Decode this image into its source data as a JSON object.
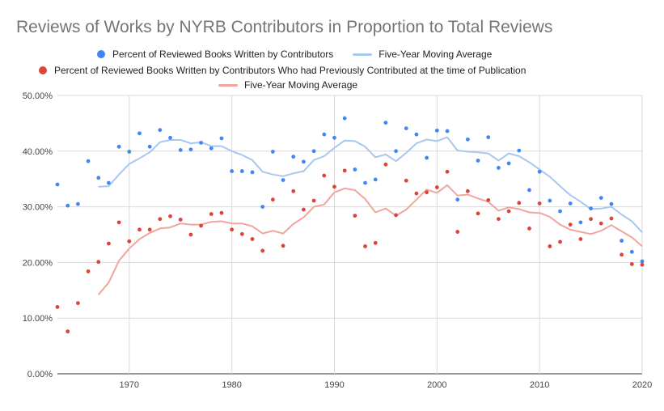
{
  "title": "Reviews of Works by NYRB Contributors in Proportion to Total Reviews",
  "legend": {
    "s1": "Percent of Reviewed Books Written by Contributors",
    "s1_avg": "Five-Year Moving Average",
    "s2": "Percent of Reviewed Books Written by Contributors Who had Previously Contributed at the time of Publication",
    "s2_avg": "Five-Year Moving Average"
  },
  "colors": {
    "blue": "#4285f4",
    "blue_avg": "#a8c7f0",
    "red": "#db4437",
    "red_avg": "#f0a59d",
    "grid": "#d9d9d9",
    "axis_text": "#444444",
    "title": "#757575"
  },
  "chart_data": {
    "type": "scatter",
    "title": "Reviews of Works by NYRB Contributors in Proportion to Total Reviews",
    "xlabel": "",
    "ylabel": "",
    "xlim": [
      1963,
      2020
    ],
    "ylim": [
      0,
      50
    ],
    "x_ticks": [
      "1970",
      "1980",
      "1990",
      "2000",
      "2010",
      "2020"
    ],
    "x_tick_values": [
      1970,
      1980,
      1990,
      2000,
      2010,
      2020
    ],
    "y_ticks": [
      "0.00%",
      "10.00%",
      "20.00%",
      "30.00%",
      "40.00%",
      "50.00%"
    ],
    "y_tick_values": [
      0,
      10,
      20,
      30,
      40,
      50
    ],
    "grid": true,
    "legend_position": "top",
    "series": [
      {
        "name": "Percent of Reviewed Books Written by Contributors",
        "kind": "points",
        "x": [
          1963,
          1964,
          1965,
          1966,
          1967,
          1968,
          1969,
          1970,
          1971,
          1972,
          1973,
          1974,
          1975,
          1976,
          1977,
          1978,
          1979,
          1980,
          1981,
          1982,
          1983,
          1984,
          1985,
          1986,
          1987,
          1988,
          1989,
          1990,
          1991,
          1992,
          1993,
          1994,
          1995,
          1996,
          1997,
          1998,
          1999,
          2000,
          2001,
          2002,
          2003,
          2004,
          2005,
          2006,
          2007,
          2008,
          2009,
          2010,
          2011,
          2012,
          2013,
          2014,
          2015,
          2016,
          2017,
          2018,
          2019,
          2020
        ],
        "y": [
          34.0,
          30.2,
          30.5,
          38.2,
          35.2,
          34.3,
          40.8,
          39.9,
          43.2,
          40.8,
          43.8,
          42.4,
          40.2,
          40.3,
          41.5,
          40.5,
          42.3,
          36.4,
          36.4,
          36.2,
          30.0,
          39.9,
          34.8,
          39.0,
          38.1,
          40.0,
          43.0,
          42.4,
          45.9,
          36.7,
          34.3,
          34.9,
          45.1,
          40.0,
          44.1,
          43.0,
          38.8,
          43.7,
          43.6,
          31.3,
          42.1,
          38.3,
          42.5,
          37.0,
          37.8,
          40.1,
          33.0,
          36.3,
          31.1,
          29.2,
          30.6,
          27.2,
          29.7,
          31.6,
          30.5,
          23.9,
          21.9,
          20.2
        ]
      },
      {
        "name": "Five-Year Moving Average",
        "kind": "line",
        "x": [
          1967,
          1968,
          1969,
          1970,
          1971,
          1972,
          1973,
          1974,
          1975,
          1976,
          1977,
          1978,
          1979,
          1980,
          1981,
          1982,
          1983,
          1984,
          1985,
          1986,
          1987,
          1988,
          1989,
          1990,
          1991,
          1992,
          1993,
          1994,
          1995,
          1996,
          1997,
          1998,
          1999,
          2000,
          2001,
          2002,
          2003,
          2004,
          2005,
          2006,
          2007,
          2008,
          2009,
          2010,
          2011,
          2012,
          2013,
          2014,
          2015,
          2016,
          2017,
          2018,
          2019,
          2020
        ],
        "y": [
          33.6,
          33.7,
          35.8,
          37.7,
          38.7,
          39.8,
          41.6,
          42.0,
          42.0,
          41.4,
          41.6,
          40.9,
          40.9,
          40.0,
          39.3,
          38.4,
          36.3,
          35.8,
          35.5,
          36.0,
          36.4,
          38.4,
          39.1,
          40.6,
          41.9,
          41.8,
          40.8,
          38.9,
          39.4,
          38.2,
          39.7,
          41.4,
          42.1,
          41.8,
          42.5,
          40.1,
          39.9,
          39.8,
          39.6,
          38.3,
          39.6,
          39.1,
          38.0,
          36.7,
          35.4,
          33.7,
          32.1,
          30.9,
          29.6,
          29.7,
          30.0,
          28.6,
          27.4,
          25.4
        ]
      },
      {
        "name": "Percent of Reviewed Books Written by Contributors Who had Previously Contributed at the time of Publication",
        "kind": "points",
        "x": [
          1963,
          1964,
          1965,
          1966,
          1967,
          1968,
          1969,
          1970,
          1971,
          1972,
          1973,
          1974,
          1975,
          1976,
          1977,
          1978,
          1979,
          1980,
          1981,
          1982,
          1983,
          1984,
          1985,
          1986,
          1987,
          1988,
          1989,
          1990,
          1991,
          1992,
          1993,
          1994,
          1995,
          1996,
          1997,
          1998,
          1999,
          2000,
          2001,
          2002,
          2003,
          2004,
          2005,
          2006,
          2007,
          2008,
          2009,
          2010,
          2011,
          2012,
          2013,
          2014,
          2015,
          2016,
          2017,
          2018,
          2019,
          2020
        ],
        "y": [
          12.0,
          7.6,
          12.7,
          18.4,
          20.1,
          23.4,
          27.2,
          23.8,
          25.9,
          25.9,
          27.8,
          28.3,
          27.7,
          25.0,
          26.6,
          28.7,
          28.9,
          25.9,
          25.1,
          24.2,
          22.1,
          31.3,
          23.0,
          32.8,
          29.5,
          31.1,
          35.6,
          33.6,
          36.5,
          28.4,
          22.9,
          23.5,
          37.6,
          28.5,
          34.7,
          32.4,
          32.6,
          33.5,
          36.3,
          25.5,
          32.8,
          28.8,
          31.2,
          27.8,
          29.2,
          30.7,
          26.1,
          30.6,
          22.9,
          23.7,
          26.8,
          24.2,
          27.8,
          27.0,
          27.9,
          21.4,
          19.7,
          19.6
        ]
      },
      {
        "name": "Five-Year Moving Average",
        "kind": "line",
        "x": [
          1967,
          1968,
          1969,
          1970,
          1971,
          1972,
          1973,
          1974,
          1975,
          1976,
          1977,
          1978,
          1979,
          1980,
          1981,
          1982,
          1983,
          1984,
          1985,
          1986,
          1987,
          1988,
          1989,
          1990,
          1991,
          1992,
          1993,
          1994,
          1995,
          1996,
          1997,
          1998,
          1999,
          2000,
          2001,
          2002,
          2003,
          2004,
          2005,
          2006,
          2007,
          2008,
          2009,
          2010,
          2011,
          2012,
          2013,
          2014,
          2015,
          2016,
          2017,
          2018,
          2019,
          2020
        ],
        "y": [
          14.2,
          16.4,
          20.3,
          22.5,
          24.2,
          25.3,
          26.1,
          26.3,
          27.0,
          26.8,
          26.8,
          27.3,
          27.4,
          27.0,
          27.0,
          26.5,
          25.2,
          25.7,
          25.2,
          26.9,
          28.1,
          30.0,
          30.4,
          32.6,
          33.3,
          33.0,
          31.4,
          29.0,
          29.7,
          28.4,
          29.5,
          31.3,
          33.1,
          32.5,
          33.9,
          32.0,
          32.2,
          31.5,
          30.9,
          29.3,
          29.9,
          29.6,
          29.0,
          28.9,
          28.2,
          26.8,
          25.9,
          25.5,
          25.1,
          25.7,
          26.7,
          25.6,
          24.5,
          22.9
        ]
      }
    ]
  }
}
